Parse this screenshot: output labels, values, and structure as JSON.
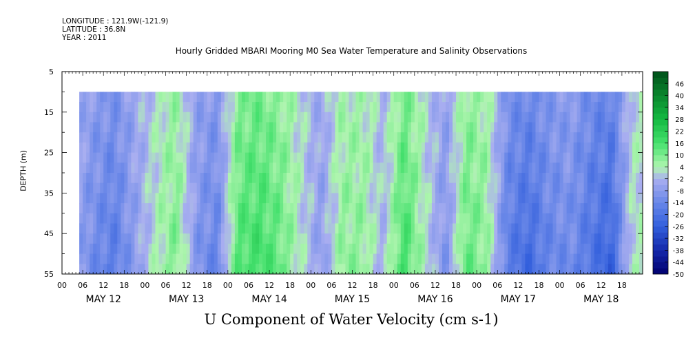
{
  "header": {
    "longitude": "LONGITUDE : 121.9W(-121.9)",
    "latitude": "LATITUDE : 36.8N",
    "year": "YEAR : 2011",
    "title": "Hourly Gridded MBARI Mooring M0 Sea Water Temperature and Salinity Observations"
  },
  "chart_data": {
    "type": "heatmap",
    "title": "U Component of Water Velocity (cm s-1)",
    "ylabel": "DEPTH (m)",
    "xlabel": "",
    "ylim": [
      55,
      5
    ],
    "y_ticks": [
      "5",
      "15",
      "25",
      "35",
      "45",
      "55"
    ],
    "x_hour_ticks": [
      "00",
      "06",
      "12",
      "18",
      "00",
      "06",
      "12",
      "18",
      "00",
      "06",
      "12",
      "18",
      "00",
      "06",
      "12",
      "18",
      "00",
      "06",
      "12",
      "18",
      "00",
      "06",
      "12",
      "18",
      "00",
      "06",
      "12",
      "18"
    ],
    "x_day_labels": [
      "MAY 12",
      "MAY 13",
      "MAY 14",
      "MAY 15",
      "MAY 16",
      "MAY 17",
      "MAY 18"
    ],
    "data_start_hour": 5,
    "data_end_hour": 168,
    "data_top_depth": 10,
    "data_bottom_depth": 55,
    "approx_u_by_6h_block": [
      -4,
      -10,
      -14,
      -6,
      2,
      8,
      -8,
      -12,
      12,
      14,
      10,
      2,
      -6,
      6,
      6,
      -2,
      14,
      2,
      -8,
      10,
      6,
      -14,
      -18,
      -12,
      -10,
      -16,
      -20,
      2
    ],
    "colorbar": {
      "levels": [
        "-50",
        "-44",
        "-38",
        "-32",
        "-26",
        "-20",
        "-14",
        "-8",
        "-2",
        "4",
        "10",
        "16",
        "22",
        "28",
        "34",
        "40",
        "46"
      ],
      "range": [
        -50,
        52
      ]
    }
  }
}
